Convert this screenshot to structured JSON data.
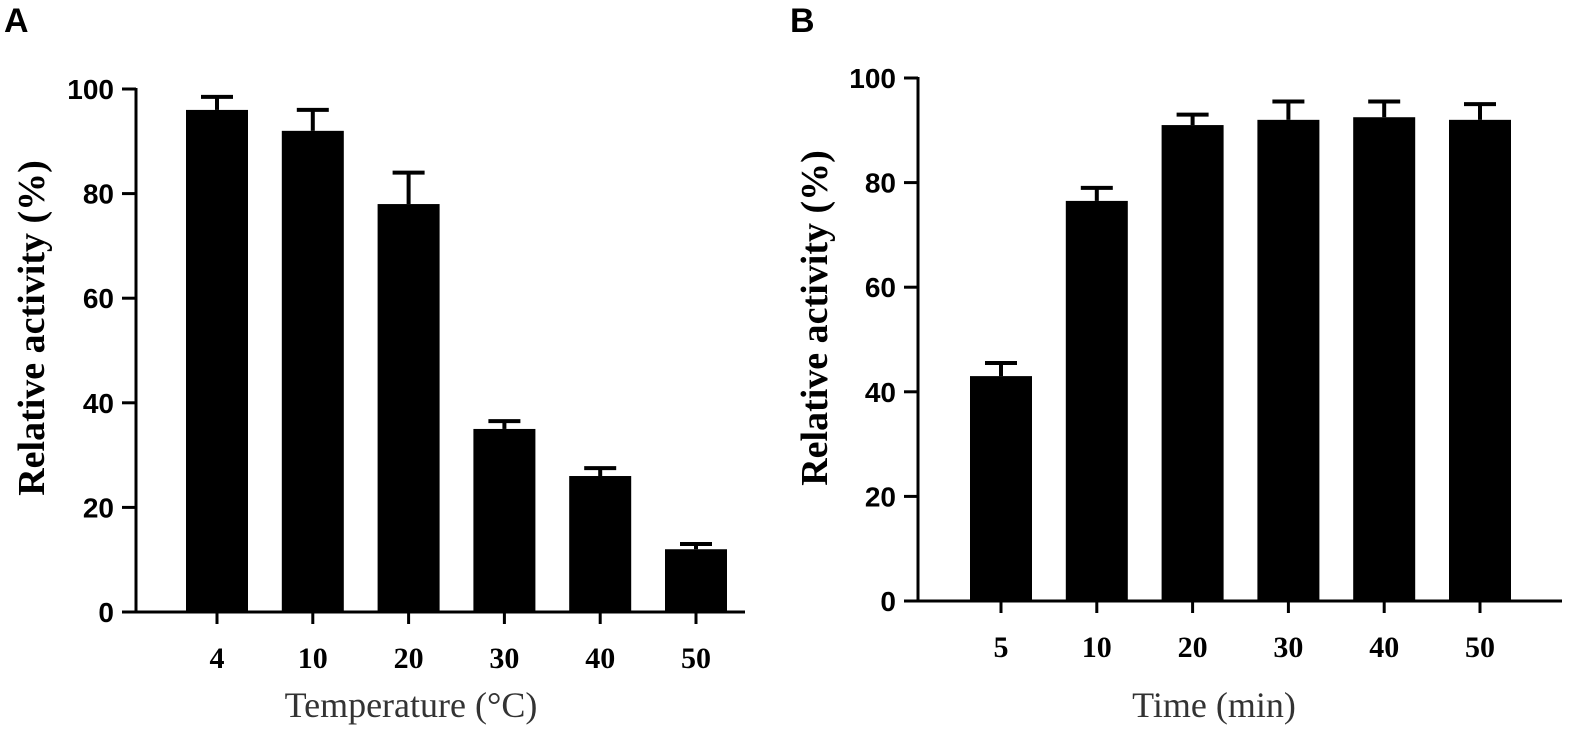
{
  "chart_data": [
    {
      "panel": "A",
      "type": "bar",
      "categories": [
        "4",
        "10",
        "20",
        "30",
        "40",
        "50"
      ],
      "values": [
        96,
        92,
        78,
        35,
        26,
        12
      ],
      "errors": [
        2.5,
        4,
        6,
        1.5,
        1.5,
        1
      ],
      "xlabel": "Temperature (°C)",
      "ylabel": "Relative activity (%)",
      "ylim": [
        0,
        100
      ],
      "yticks": [
        "0",
        "20",
        "40",
        "60",
        "80",
        "100"
      ],
      "bar_color": "#000000"
    },
    {
      "panel": "B",
      "type": "bar",
      "categories": [
        "5",
        "10",
        "20",
        "30",
        "40",
        "50"
      ],
      "values": [
        43,
        76.5,
        91,
        92,
        92.5,
        92
      ],
      "errors": [
        2.5,
        2.5,
        2,
        3.5,
        3,
        3
      ],
      "xlabel": "Time (min)",
      "ylabel": "Relative activity (%)",
      "ylim": [
        0,
        100
      ],
      "yticks": [
        "0",
        "20",
        "40",
        "60",
        "80",
        "100"
      ],
      "bar_color": "#000000"
    }
  ]
}
